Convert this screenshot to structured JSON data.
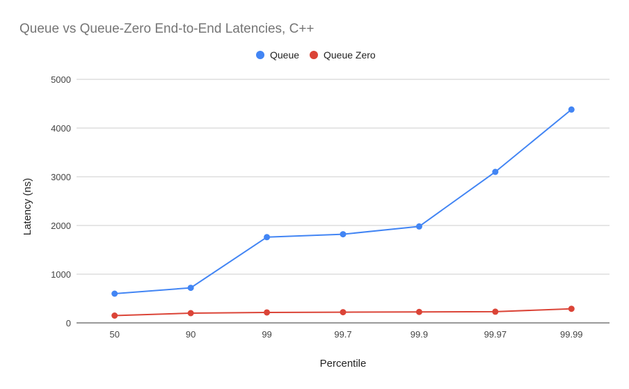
{
  "chart_data": {
    "type": "line",
    "title": "Queue vs Queue-Zero End-to-End Latencies, C++",
    "xlabel": "Percentile",
    "ylabel": "Latency (ns)",
    "categories": [
      "50",
      "90",
      "99",
      "99.7",
      "99.9",
      "99.97",
      "99.99"
    ],
    "ylim": [
      0,
      5000
    ],
    "yticks": [
      0,
      1000,
      2000,
      3000,
      4000,
      5000
    ],
    "grid": true,
    "legend_position": "top",
    "series": [
      {
        "name": "Queue",
        "color": "#4285f4",
        "values": [
          600,
          720,
          1760,
          1820,
          1980,
          3100,
          4380
        ]
      },
      {
        "name": "Queue Zero",
        "color": "#db4437",
        "values": [
          150,
          200,
          215,
          220,
          225,
          230,
          290
        ]
      }
    ]
  }
}
